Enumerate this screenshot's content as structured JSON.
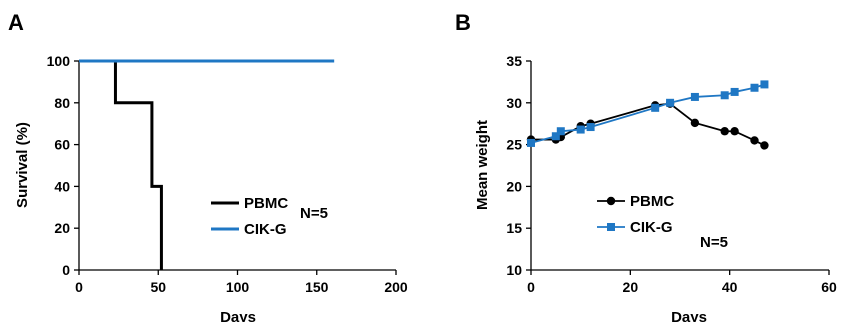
{
  "chart_data": [
    {
      "type": "line",
      "panel": "A",
      "xlabel": "Days",
      "ylabel": "Survival (%)",
      "xlim": [
        0,
        200
      ],
      "ylim": [
        0,
        100
      ],
      "xticks": [
        0,
        50,
        100,
        150,
        200
      ],
      "yticks": [
        0,
        20,
        40,
        60,
        80,
        100
      ],
      "step": true,
      "legend_placement": "right",
      "annotation": "N=5",
      "series": [
        {
          "name": "PBMC",
          "color": "#000000",
          "x": [
            0,
            23,
            23,
            46,
            46,
            52,
            52
          ],
          "y": [
            100,
            100,
            80,
            80,
            40,
            40,
            0
          ]
        },
        {
          "name": "CIK-G",
          "color": "#1f77c4",
          "x": [
            0,
            161
          ],
          "y": [
            100,
            100
          ]
        }
      ]
    },
    {
      "type": "line",
      "panel": "B",
      "xlabel": "Days",
      "ylabel": "Mean weight",
      "xlim": [
        0,
        60
      ],
      "ylim": [
        10,
        35
      ],
      "xticks": [
        0,
        20,
        40,
        60
      ],
      "yticks": [
        10,
        15,
        20,
        25,
        30,
        35
      ],
      "legend_placement": "bottom-left",
      "annotation": "N=5",
      "series": [
        {
          "name": "PBMC",
          "color": "#000000",
          "marker": "circle",
          "x": [
            0,
            5,
            6,
            10,
            12,
            25,
            28,
            33,
            39,
            41,
            45,
            47
          ],
          "y": [
            25.6,
            25.6,
            25.9,
            27.2,
            27.5,
            29.7,
            29.9,
            27.6,
            26.6,
            26.6,
            25.5,
            24.9
          ]
        },
        {
          "name": "CIK-G",
          "color": "#1f77c4",
          "marker": "square",
          "x": [
            0,
            5,
            6,
            10,
            12,
            25,
            28,
            33,
            39,
            41,
            45,
            47
          ],
          "y": [
            25.2,
            26.0,
            26.6,
            26.8,
            27.1,
            29.4,
            30.0,
            30.7,
            30.9,
            31.3,
            31.8,
            32.2
          ]
        }
      ]
    }
  ]
}
